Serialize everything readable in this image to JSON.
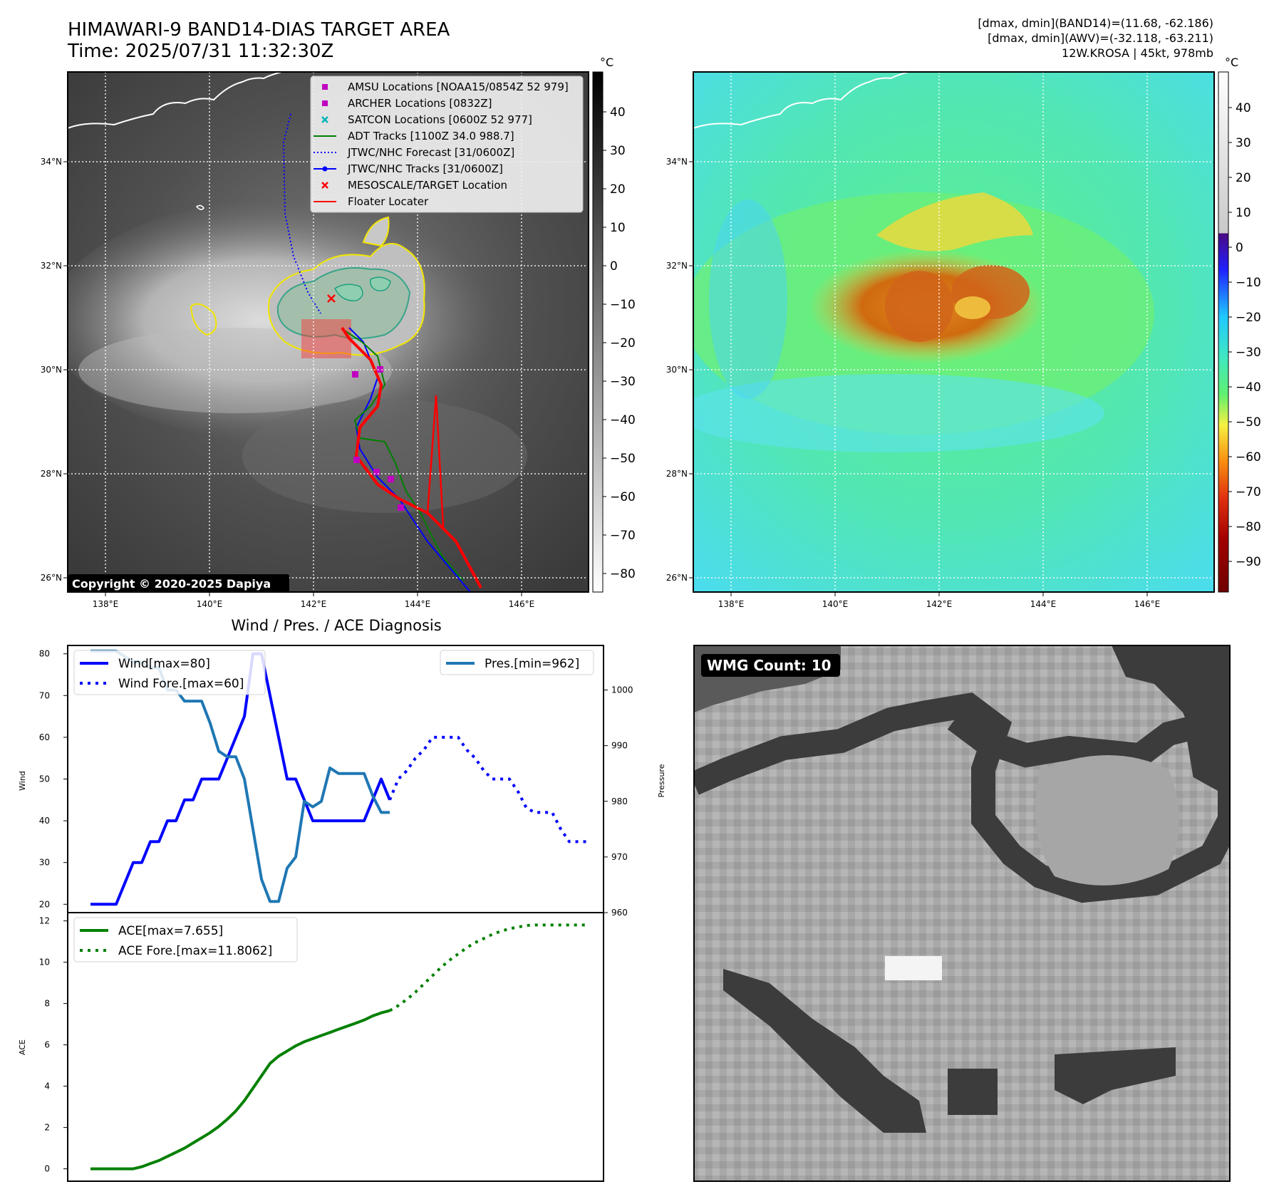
{
  "header": {
    "title": "HIMAWARI-9 BAND14-DIAS TARGET AREA",
    "time": "Time: 2025/07/31 11:32:30Z",
    "info_line1": "[dmax, dmin](BAND14)=(11.68, -62.186)",
    "info_line2": "[dmax, dmin](AWV)=(-32.118, -63.211)",
    "info_line3": "12W.KROSA | 45kt, 978mb"
  },
  "map_axes": {
    "lon_ticks": [
      "138°E",
      "140°E",
      "142°E",
      "144°E",
      "146°E"
    ],
    "lat_ticks": [
      "34°N",
      "32°N",
      "30°N",
      "28°N",
      "26°N"
    ]
  },
  "ir_panel": {
    "colorbar_unit": "°C",
    "colorbar_ticks": [
      "40",
      "30",
      "20",
      "10",
      "0",
      "−10",
      "−20",
      "−30",
      "−40",
      "−50",
      "−60",
      "−70",
      "−80"
    ],
    "copyright": "Copyright © 2020-2025 Dapiya",
    "legend": [
      {
        "label": "AMSU Locations [NOAA15/0854Z 52 979]",
        "color": "#c000c0",
        "icon": "square-marker"
      },
      {
        "label": "ARCHER Locations [0832Z]",
        "color": "#c000c0",
        "icon": "square-marker"
      },
      {
        "label": "SATCON Locations [0600Z 52 977]",
        "color": "#00b5b5",
        "icon": "x-marker"
      },
      {
        "label": "ADT Tracks [1100Z 34.0 988.7]",
        "color": "#008000",
        "icon": "solid-line"
      },
      {
        "label": "JTWC/NHC Forecast [31/0600Z]",
        "color": "#0000ff",
        "icon": "dotted-line"
      },
      {
        "label": "JTWC/NHC Tracks [31/0600Z]",
        "color": "#0000ff",
        "icon": "line-dot"
      },
      {
        "label": "MESOSCALE/TARGET Location",
        "color": "#ff0000",
        "icon": "x-marker"
      },
      {
        "label": "Floater Locater",
        "color": "#ff0000",
        "icon": "solid-line"
      }
    ]
  },
  "awv_panel": {
    "colorbar_unit": "°C",
    "colorbar_ticks": [
      "40",
      "30",
      "20",
      "10",
      "0",
      "−10",
      "−20",
      "−30",
      "−40",
      "−50",
      "−60",
      "−70",
      "−80",
      "−90"
    ]
  },
  "diagnosis": {
    "title": "Wind / Pres. / ACE Diagnosis",
    "wind_ylabel": "Wind",
    "pressure_ylabel": "Pressure",
    "ace_ylabel": "ACE",
    "legend_wind": "Wind[max=80]",
    "legend_wind_fore": "Wind Fore.[max=60]",
    "legend_pres": "Pres.[min=962]",
    "legend_ace": "ACE[max=7.655]",
    "legend_ace_fore": "ACE Fore.[max=11.8062]"
  },
  "wmg": {
    "badge": "WMG Count: 10"
  },
  "chart_data": [
    {
      "type": "line",
      "panel": "wind-pressure",
      "ylim_wind": [
        18,
        82
      ],
      "ylim_pressure": [
        960,
        1008
      ],
      "wind_ticks": [
        20,
        30,
        40,
        50,
        60,
        70,
        80
      ],
      "pressure_ticks": [
        960,
        970,
        980,
        990,
        1000
      ],
      "series": [
        {
          "name": "Wind[max=80]",
          "color": "#0000ff",
          "style": "solid",
          "axis": "wind",
          "x": [
            0,
            1,
            2,
            3,
            4,
            5,
            6,
            7,
            8,
            9,
            10,
            11,
            12,
            13,
            14,
            15,
            16,
            17,
            18,
            19,
            20,
            21,
            22,
            23,
            24,
            25,
            26,
            27,
            28,
            29,
            30,
            31,
            32,
            33,
            34,
            35
          ],
          "values": [
            20,
            20,
            20,
            20,
            25,
            30,
            30,
            35,
            35,
            40,
            40,
            45,
            45,
            50,
            50,
            50,
            55,
            60,
            65,
            80,
            80,
            70,
            60,
            50,
            50,
            45,
            40,
            40,
            40,
            40,
            40,
            40,
            40,
            45,
            50,
            45
          ]
        },
        {
          "name": "Wind Fore.[max=60]",
          "color": "#0000ff",
          "style": "dotted",
          "axis": "wind",
          "x": [
            35,
            36,
            37,
            38,
            39,
            40,
            41,
            42,
            43,
            44,
            45,
            46,
            47,
            48,
            49,
            50,
            51,
            52,
            53,
            54,
            55,
            56,
            57,
            58
          ],
          "values": [
            45,
            50,
            52,
            55,
            57,
            60,
            60,
            60,
            60,
            57,
            55,
            52,
            50,
            50,
            50,
            47,
            43,
            42,
            42,
            42,
            38,
            35,
            35,
            35
          ]
        },
        {
          "name": "Pres.[min=962]",
          "color": "#1f77b4",
          "style": "solid",
          "axis": "pressure",
          "x": [
            0,
            1,
            2,
            3,
            4,
            5,
            6,
            7,
            8,
            9,
            10,
            11,
            12,
            13,
            14,
            15,
            16,
            17,
            18,
            19,
            20,
            21,
            22,
            23,
            24,
            25,
            26,
            27,
            28,
            29,
            30,
            31,
            32,
            33,
            34,
            35
          ],
          "values": [
            1007,
            1007,
            1007,
            1007,
            1006,
            1005,
            1005,
            1004,
            1004,
            1000,
            1000,
            998,
            998,
            998,
            994,
            989,
            988,
            988,
            984,
            975,
            966,
            962,
            962,
            968,
            970,
            980,
            979,
            980,
            986,
            985,
            985,
            985,
            985,
            981,
            978,
            978
          ]
        }
      ]
    },
    {
      "type": "line",
      "panel": "ace",
      "ylim": [
        -0.6,
        12.4
      ],
      "ticks": [
        0,
        2,
        4,
        6,
        8,
        10,
        12
      ],
      "series": [
        {
          "name": "ACE[max=7.655]",
          "color": "#008000",
          "style": "solid",
          "x": [
            0,
            1,
            2,
            3,
            4,
            5,
            6,
            7,
            8,
            9,
            10,
            11,
            12,
            13,
            14,
            15,
            16,
            17,
            18,
            19,
            20,
            21,
            22,
            23,
            24,
            25,
            26,
            27,
            28,
            29,
            30,
            31,
            32,
            33,
            34,
            35
          ],
          "values": [
            0,
            0,
            0,
            0,
            0,
            0,
            0.1,
            0.25,
            0.4,
            0.6,
            0.8,
            1.0,
            1.25,
            1.5,
            1.75,
            2.05,
            2.4,
            2.8,
            3.3,
            3.9,
            4.5,
            5.1,
            5.45,
            5.7,
            5.95,
            6.15,
            6.3,
            6.45,
            6.6,
            6.75,
            6.9,
            7.05,
            7.2,
            7.4,
            7.55,
            7.655
          ]
        },
        {
          "name": "ACE Fore.[max=11.8062]",
          "color": "#008000",
          "style": "dotted",
          "x": [
            35,
            36,
            37,
            38,
            39,
            40,
            41,
            42,
            43,
            44,
            45,
            46,
            47,
            48,
            49,
            50,
            51,
            52,
            53,
            54,
            55,
            56,
            57,
            58
          ],
          "values": [
            7.655,
            7.9,
            8.2,
            8.55,
            8.95,
            9.35,
            9.75,
            10.1,
            10.4,
            10.7,
            10.95,
            11.15,
            11.35,
            11.5,
            11.62,
            11.7,
            11.78,
            11.8,
            11.8,
            11.8,
            11.8,
            11.8,
            11.8,
            11.8
          ]
        }
      ]
    }
  ]
}
